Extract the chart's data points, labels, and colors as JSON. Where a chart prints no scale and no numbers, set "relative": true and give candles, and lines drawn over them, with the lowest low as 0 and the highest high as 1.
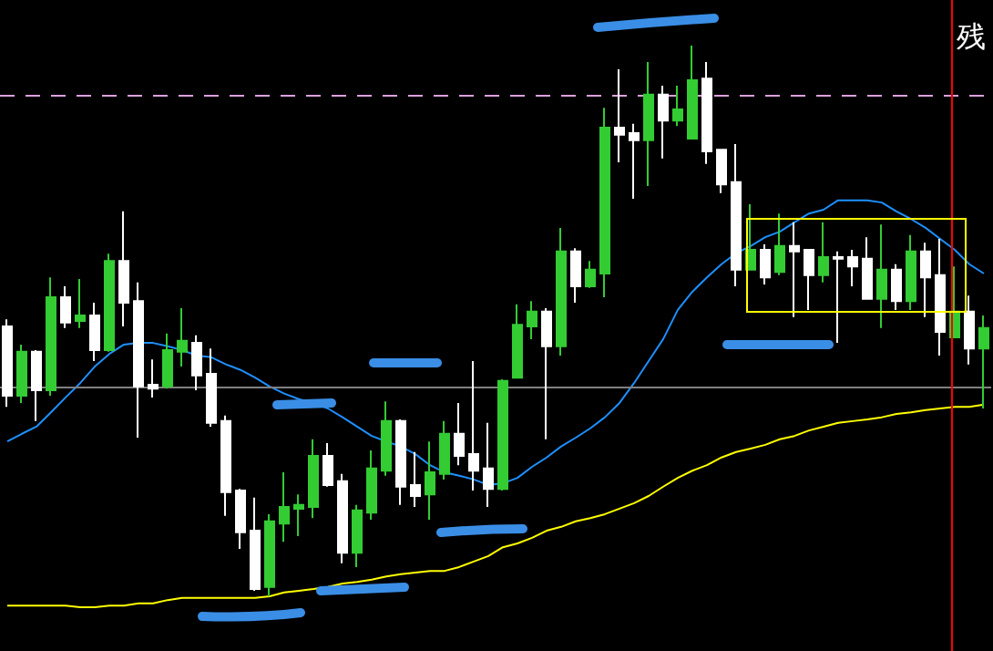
{
  "chart_data": {
    "type": "candlestick",
    "relative": true,
    "categories": [
      null,
      null,
      null,
      null,
      null,
      null,
      null,
      null,
      null,
      null,
      null,
      null,
      null,
      null,
      null,
      null,
      null,
      null,
      null,
      null,
      null,
      null,
      null,
      null,
      null,
      null,
      null,
      null,
      null,
      null,
      null,
      null,
      null,
      null,
      null,
      null,
      null,
      null,
      null,
      null,
      null,
      null,
      null,
      null,
      null,
      null,
      null,
      null,
      null,
      null,
      null,
      null,
      null,
      null,
      null,
      null,
      null,
      null,
      null,
      null,
      null,
      null,
      null,
      null,
      null,
      null,
      null,
      null
    ],
    "ohlc": [
      [
        0.49,
        0.503,
        0.344,
        0.364
      ],
      [
        0.364,
        0.457,
        0.351,
        0.444
      ],
      [
        0.444,
        0.447,
        0.318,
        0.374
      ],
      [
        0.374,
        0.579,
        0.364,
        0.543
      ],
      [
        0.543,
        0.563,
        0.487,
        0.497
      ],
      [
        0.5,
        0.576,
        0.487,
        0.51
      ],
      [
        0.51,
        0.533,
        0.427,
        0.447
      ],
      [
        0.447,
        0.622,
        0.444,
        0.609
      ],
      [
        0.609,
        0.699,
        0.49,
        0.533
      ],
      [
        0.536,
        0.57,
        0.288,
        0.381
      ],
      [
        0.384,
        0.43,
        0.361,
        0.377
      ],
      [
        0.381,
        0.477,
        0.377,
        0.447
      ],
      [
        0.444,
        0.523,
        0.417,
        0.464
      ],
      [
        0.46,
        0.474,
        0.374,
        0.401
      ],
      [
        0.404,
        0.45,
        0.308,
        0.315
      ],
      [
        0.318,
        0.328,
        0.146,
        0.189
      ],
      [
        0.192,
        0.195,
        0.086,
        0.116
      ],
      [
        0.119,
        0.179,
        0.01,
        0.013
      ],
      [
        0.017,
        0.149,
        0,
        0.136
      ],
      [
        0.132,
        0.225,
        0.099,
        0.162
      ],
      [
        0.159,
        0.185,
        0.109,
        0.166
      ],
      [
        0.162,
        0.285,
        0.142,
        0.255
      ],
      [
        0.255,
        0.278,
        0.199,
        0.202
      ],
      [
        0.209,
        0.222,
        0.06,
        0.079
      ],
      [
        0.079,
        0.166,
        0.053,
        0.156
      ],
      [
        0.152,
        0.265,
        0.139,
        0.232
      ],
      [
        0.228,
        0.354,
        0.219,
        0.318
      ],
      [
        0.318,
        0.321,
        0.166,
        0.199
      ],
      [
        0.202,
        0.262,
        0.162,
        0.182
      ],
      [
        0.185,
        0.281,
        0.139,
        0.225
      ],
      [
        0.222,
        0.318,
        0.212,
        0.295
      ],
      [
        0.295,
        0.351,
        0.238,
        0.255
      ],
      [
        0.258,
        0.427,
        0.192,
        0.228
      ],
      [
        0.232,
        0.315,
        0.162,
        0.195
      ],
      [
        0.195,
        0.394,
        0.192,
        0.391
      ],
      [
        0.397,
        0.53,
        0.397,
        0.493
      ],
      [
        0.49,
        0.536,
        0.467,
        0.517
      ],
      [
        0.517,
        0.523,
        0.285,
        0.454
      ],
      [
        0.454,
        0.669,
        0.437,
        0.626
      ],
      [
        0.626,
        0.632,
        0.533,
        0.563
      ],
      [
        0.563,
        0.609,
        0.56,
        0.593
      ],
      [
        0.586,
        0.887,
        0.543,
        0.851
      ],
      [
        0.851,
        0.957,
        0.788,
        0.838
      ],
      [
        0.841,
        0.858,
        0.722,
        0.828
      ],
      [
        0.828,
        0.97,
        0.745,
        0.911
      ],
      [
        0.911,
        0.927,
        0.795,
        0.864
      ],
      [
        0.864,
        0.927,
        0.854,
        0.884
      ],
      [
        0.831,
        1,
        0.831,
        0.937
      ],
      [
        0.94,
        0.97,
        0.785,
        0.808
      ],
      [
        0.811,
        0.811,
        0.732,
        0.748
      ],
      [
        0.752,
        0.821,
        0.563,
        0.593
      ],
      [
        0.593,
        0.712,
        0.593,
        0.629
      ],
      [
        0.629,
        0.639,
        0.566,
        0.579
      ],
      [
        0.589,
        0.695,
        0.583,
        0.636
      ],
      [
        0.636,
        0.679,
        0.507,
        0.626
      ],
      [
        0.629,
        0.629,
        0.52,
        0.583
      ],
      [
        0.583,
        0.679,
        0.57,
        0.616
      ],
      [
        0.616,
        0.626,
        0.46,
        0.613
      ],
      [
        0.616,
        0.629,
        0.563,
        0.599
      ],
      [
        0.613,
        0.652,
        0.54,
        0.54
      ],
      [
        0.54,
        0.675,
        0.487,
        0.593
      ],
      [
        0.593,
        0.603,
        0.52,
        0.536
      ],
      [
        0.536,
        0.656,
        0.52,
        0.626
      ],
      [
        0.626,
        0.642,
        0.507,
        0.579
      ],
      [
        0.583,
        0.649,
        0.437,
        0.48
      ],
      [
        0.47,
        0.599,
        0.47,
        0.517
      ],
      [
        0.517,
        0.546,
        0.421,
        0.45
      ],
      [
        0.45,
        0.51,
        0.341,
        0.487
      ]
    ],
    "colors": [
      "#ffffff",
      "#33cc33",
      "#ffffff",
      "#33cc33",
      "#ffffff",
      "#33cc33",
      "#ffffff",
      "#33cc33",
      "#ffffff",
      "#ffffff",
      "#ffffff",
      "#33cc33",
      "#33cc33",
      "#ffffff",
      "#ffffff",
      "#ffffff",
      "#ffffff",
      "#ffffff",
      "#33cc33",
      "#33cc33",
      "#33cc33",
      "#33cc33",
      "#ffffff",
      "#ffffff",
      "#33cc33",
      "#33cc33",
      "#33cc33",
      "#ffffff",
      "#ffffff",
      "#33cc33",
      "#33cc33",
      "#ffffff",
      "#ffffff",
      "#ffffff",
      "#33cc33",
      "#33cc33",
      "#33cc33",
      "#ffffff",
      "#33cc33",
      "#ffffff",
      "#33cc33",
      "#33cc33",
      "#ffffff",
      "#ffffff",
      "#33cc33",
      "#ffffff",
      "#33cc33",
      "#33cc33",
      "#ffffff",
      "#ffffff",
      "#ffffff",
      "#33cc33",
      "#ffffff",
      "#33cc33",
      "#ffffff",
      "#ffffff",
      "#33cc33",
      "#ffffff",
      "#ffffff",
      "#ffffff",
      "#33cc33",
      "#ffffff",
      "#33cc33",
      "#ffffff",
      "#ffffff",
      "#33cc33",
      "#ffffff",
      "#33cc33"
    ],
    "series": [
      {
        "type": "line",
        "color": "#1e90ff",
        "values": [
          0.281,
          0.295,
          0.308,
          0.334,
          0.361,
          0.387,
          0.417,
          0.44,
          0.457,
          0.46,
          0.46,
          0.454,
          0.447,
          0.437,
          0.434,
          0.421,
          0.411,
          0.397,
          0.381,
          0.368,
          0.358,
          0.351,
          0.341,
          0.325,
          0.308,
          0.291,
          0.281,
          0.272,
          0.258,
          0.238,
          0.225,
          0.219,
          0.212,
          0.202,
          0.205,
          0.215,
          0.235,
          0.252,
          0.272,
          0.288,
          0.305,
          0.325,
          0.351,
          0.387,
          0.427,
          0.467,
          0.52,
          0.553,
          0.579,
          0.603,
          0.623,
          0.636,
          0.652,
          0.662,
          0.679,
          0.695,
          0.702,
          0.719,
          0.719,
          0.719,
          0.715,
          0.699,
          0.685,
          0.669,
          0.649,
          0.629,
          0.603,
          0.586
        ]
      },
      {
        "type": "line",
        "color": "#ffff00",
        "values": [
          -0.017,
          -0.017,
          -0.017,
          -0.017,
          -0.017,
          -0.02,
          -0.02,
          -0.017,
          -0.017,
          -0.013,
          -0.013,
          -0.007,
          -0.003,
          -0.003,
          -0.003,
          -0.003,
          -0.003,
          -0.003,
          0,
          0.007,
          0.01,
          0.013,
          0.017,
          0.023,
          0.026,
          0.03,
          0.036,
          0.04,
          0.043,
          0.046,
          0.046,
          0.053,
          0.063,
          0.073,
          0.089,
          0.096,
          0.106,
          0.119,
          0.126,
          0.136,
          0.142,
          0.149,
          0.159,
          0.169,
          0.182,
          0.199,
          0.215,
          0.228,
          0.238,
          0.252,
          0.262,
          0.268,
          0.275,
          0.285,
          0.291,
          0.301,
          0.308,
          0.315,
          0.318,
          0.321,
          0.325,
          0.331,
          0.334,
          0.338,
          0.341,
          0.344,
          0.344,
          0.348
        ]
      }
    ],
    "ref_lines": [
      {
        "axis": "y",
        "value": 0.911,
        "color": "#dda0dd",
        "line_style": "dashed"
      },
      {
        "axis": "y",
        "value": 0.377,
        "color": "#808080",
        "line_style": "solid"
      }
    ],
    "annotations": [
      "残"
    ]
  }
}
